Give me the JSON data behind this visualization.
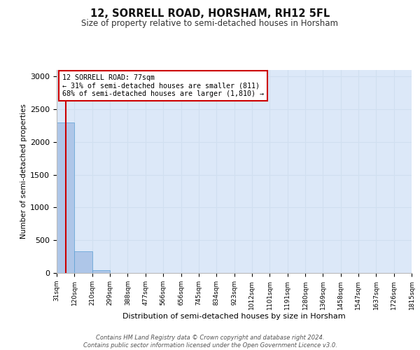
{
  "title": "12, SORRELL ROAD, HORSHAM, RH12 5FL",
  "subtitle": "Size of property relative to semi-detached houses in Horsham",
  "xlabel": "Distribution of semi-detached houses by size in Horsham",
  "ylabel": "Number of semi-detached properties",
  "property_size": 77,
  "annotation_line1": "12 SORRELL ROAD: 77sqm",
  "annotation_line2": "← 31% of semi-detached houses are smaller (811)",
  "annotation_line3": "68% of semi-detached houses are larger (1,810) →",
  "bin_edges": [
    31,
    120,
    210,
    299,
    388,
    477,
    566,
    656,
    745,
    834,
    923,
    1012,
    1101,
    1191,
    1280,
    1369,
    1458,
    1547,
    1637,
    1726,
    1815
  ],
  "bar_heights": [
    2300,
    330,
    40,
    5,
    2,
    1,
    1,
    0,
    0,
    0,
    0,
    0,
    0,
    0,
    0,
    0,
    0,
    0,
    0,
    0
  ],
  "bar_color": "#aec6e8",
  "bar_edge_color": "#5a9fd4",
  "grid_color": "#d0dff0",
  "background_color": "#dce8f8",
  "red_line_color": "#cc0000",
  "annotation_box_color": "#cc0000",
  "ylim": [
    0,
    3100
  ],
  "yticks": [
    0,
    500,
    1000,
    1500,
    2000,
    2500,
    3000
  ],
  "footer_line1": "Contains HM Land Registry data © Crown copyright and database right 2024.",
  "footer_line2": "Contains public sector information licensed under the Open Government Licence v3.0."
}
